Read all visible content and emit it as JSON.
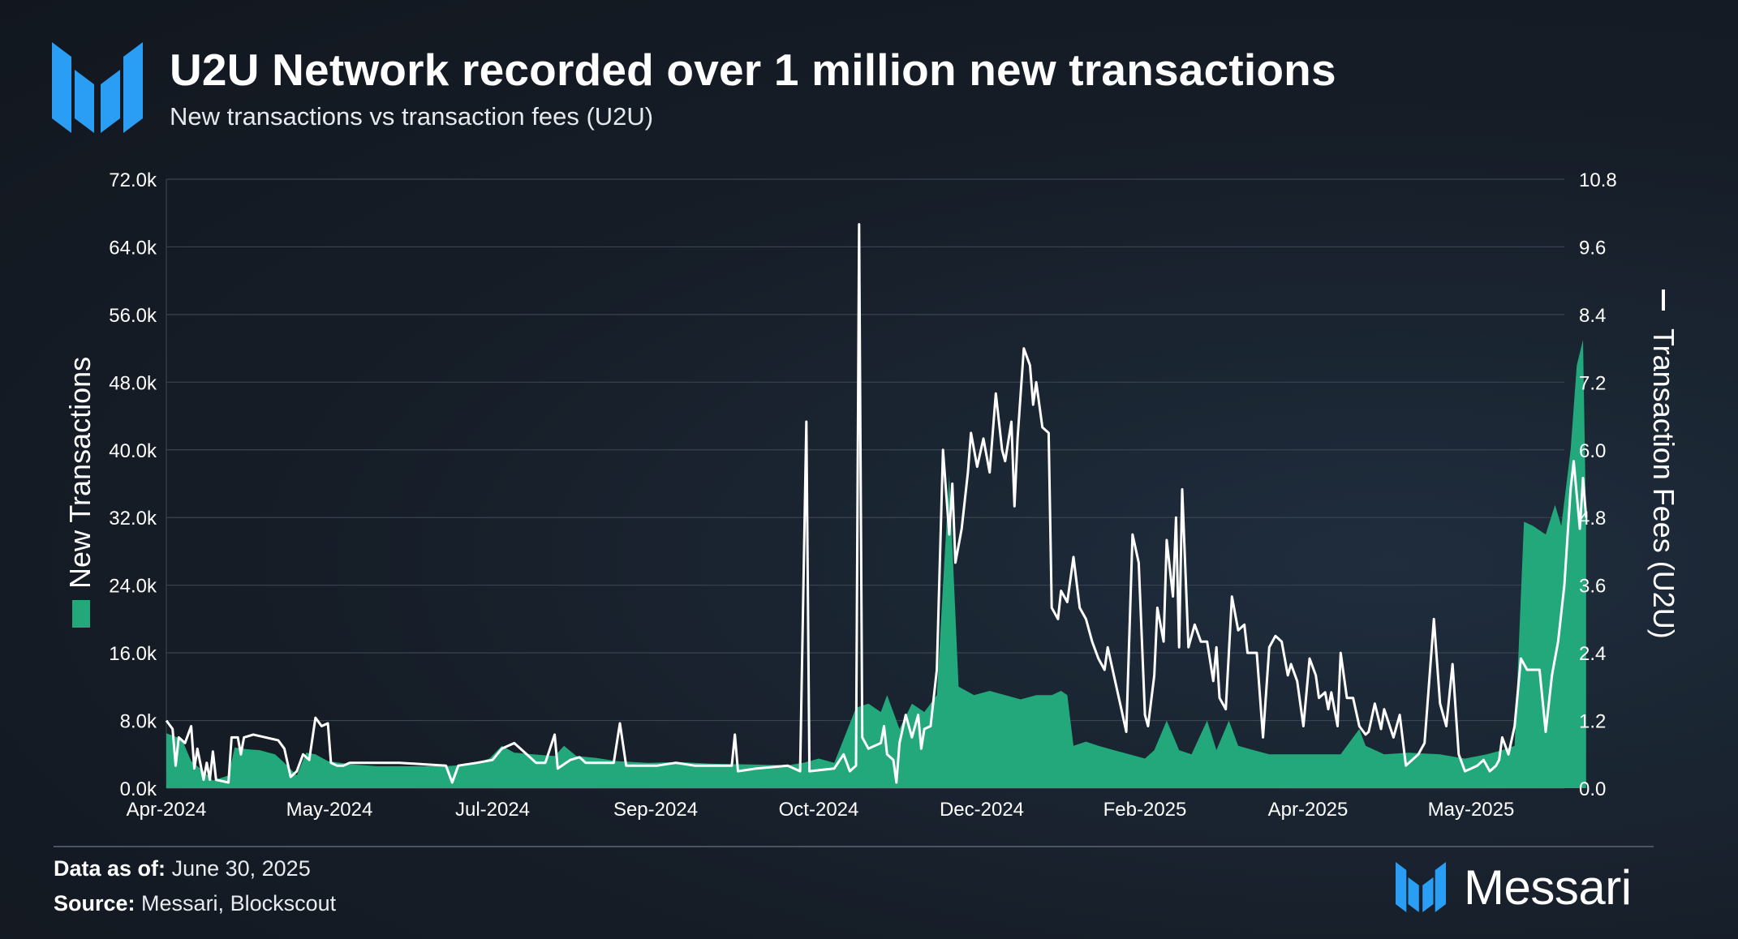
{
  "header": {
    "title": "U2U Network recorded over 1 million new transactions",
    "subtitle": "New transactions vs transaction fees (U2U)"
  },
  "footer": {
    "data_as_of_label": "Data as of:",
    "data_as_of_value": "June 30, 2025",
    "source_label": "Source:",
    "source_value": "Messari, Blockscout",
    "brand": "Messari"
  },
  "colors": {
    "area": "#22a87a",
    "line": "#ffffff",
    "grid": "#3a4350",
    "text": "#ffffff"
  },
  "chart_data": {
    "type": "area",
    "title": "U2U Network recorded over 1 million new transactions",
    "subtitle": "New transactions vs transaction fees (U2U)",
    "x_ticks": [
      "Apr-2024",
      "May-2024",
      "Jul-2024",
      "Sep-2024",
      "Oct-2024",
      "Dec-2024",
      "Feb-2025",
      "Apr-2025",
      "May-2025"
    ],
    "x_range_days": [
      0,
      450
    ],
    "y_left": {
      "label": "New Transactions",
      "range": [
        0,
        72000
      ],
      "ticks": [
        "0.0k",
        "8.0k",
        "16.0k",
        "24.0k",
        "32.0k",
        "40.0k",
        "48.0k",
        "56.0k",
        "64.0k",
        "72.0k"
      ]
    },
    "y_right": {
      "label": "Transaction Fees (U2U)",
      "range": [
        0,
        10.8
      ],
      "ticks": [
        "0.0",
        "1.2",
        "2.4",
        "3.6",
        "4.8",
        "6.0",
        "7.2",
        "8.4",
        "9.6",
        "10.8"
      ]
    },
    "series": [
      {
        "name": "New Transactions",
        "axis": "left",
        "style": "area",
        "points": [
          [
            0,
            6500
          ],
          [
            5,
            5800
          ],
          [
            8,
            3200
          ],
          [
            12,
            2000
          ],
          [
            15,
            900
          ],
          [
            20,
            1500
          ],
          [
            22,
            4800
          ],
          [
            26,
            4600
          ],
          [
            30,
            4500
          ],
          [
            35,
            4000
          ],
          [
            38,
            3000
          ],
          [
            42,
            1500
          ],
          [
            45,
            4200
          ],
          [
            48,
            4000
          ],
          [
            52,
            3200
          ],
          [
            56,
            3000
          ],
          [
            60,
            2800
          ],
          [
            68,
            2600
          ],
          [
            80,
            2600
          ],
          [
            90,
            2600
          ],
          [
            98,
            2800
          ],
          [
            104,
            3500
          ],
          [
            108,
            5000
          ],
          [
            112,
            4200
          ],
          [
            118,
            4000
          ],
          [
            125,
            3800
          ],
          [
            128,
            5000
          ],
          [
            132,
            3800
          ],
          [
            138,
            3600
          ],
          [
            145,
            3200
          ],
          [
            155,
            3000
          ],
          [
            165,
            3100
          ],
          [
            175,
            2900
          ],
          [
            188,
            2800
          ],
          [
            200,
            2700
          ],
          [
            205,
            3000
          ],
          [
            210,
            3500
          ],
          [
            215,
            3000
          ],
          [
            222,
            9500
          ],
          [
            226,
            10000
          ],
          [
            230,
            9000
          ],
          [
            232,
            11000
          ],
          [
            236,
            7000
          ],
          [
            240,
            10000
          ],
          [
            244,
            9000
          ],
          [
            248,
            11000
          ],
          [
            252,
            37000
          ],
          [
            255,
            12000
          ],
          [
            260,
            11000
          ],
          [
            265,
            11500
          ],
          [
            270,
            11000
          ],
          [
            275,
            10500
          ],
          [
            280,
            11000
          ],
          [
            285,
            11000
          ],
          [
            288,
            11500
          ],
          [
            290,
            11000
          ],
          [
            292,
            5000
          ],
          [
            296,
            5500
          ],
          [
            300,
            5000
          ],
          [
            305,
            4500
          ],
          [
            310,
            4000
          ],
          [
            315,
            3500
          ],
          [
            318,
            4500
          ],
          [
            322,
            8000
          ],
          [
            326,
            4500
          ],
          [
            330,
            4000
          ],
          [
            335,
            8000
          ],
          [
            338,
            4500
          ],
          [
            342,
            8000
          ],
          [
            345,
            5000
          ],
          [
            350,
            4500
          ],
          [
            355,
            4000
          ],
          [
            365,
            4000
          ],
          [
            378,
            4000
          ],
          [
            384,
            7000
          ],
          [
            386,
            5000
          ],
          [
            392,
            4000
          ],
          [
            400,
            4200
          ],
          [
            410,
            4000
          ],
          [
            418,
            3500
          ],
          [
            425,
            4000
          ],
          [
            430,
            4500
          ],
          [
            434,
            5000
          ],
          [
            437,
            31500
          ],
          [
            440,
            31000
          ],
          [
            444,
            30000
          ],
          [
            447,
            33500
          ],
          [
            449,
            31000
          ],
          [
            452,
            40000
          ],
          [
            454,
            50000
          ],
          [
            456,
            53000
          ],
          [
            457,
            31000
          ]
        ]
      },
      {
        "name": "Transaction Fees (U2U)",
        "axis": "right",
        "style": "line",
        "points": [
          [
            0,
            1.2
          ],
          [
            2,
            1.05
          ],
          [
            3,
            0.4
          ],
          [
            4,
            0.9
          ],
          [
            6,
            0.8
          ],
          [
            8,
            1.1
          ],
          [
            9,
            0.35
          ],
          [
            10,
            0.7
          ],
          [
            12,
            0.15
          ],
          [
            13,
            0.45
          ],
          [
            14,
            0.15
          ],
          [
            15,
            0.65
          ],
          [
            16,
            0.15
          ],
          [
            20,
            0.1
          ],
          [
            21,
            0.9
          ],
          [
            23,
            0.9
          ],
          [
            24,
            0.6
          ],
          [
            25,
            0.9
          ],
          [
            28,
            0.95
          ],
          [
            32,
            0.9
          ],
          [
            36,
            0.85
          ],
          [
            38,
            0.7
          ],
          [
            40,
            0.2
          ],
          [
            42,
            0.3
          ],
          [
            44,
            0.6
          ],
          [
            46,
            0.5
          ],
          [
            48,
            1.25
          ],
          [
            50,
            1.1
          ],
          [
            52,
            1.15
          ],
          [
            53,
            0.45
          ],
          [
            55,
            0.4
          ],
          [
            57,
            0.4
          ],
          [
            59,
            0.45
          ],
          [
            62,
            0.45
          ],
          [
            75,
            0.45
          ],
          [
            90,
            0.4
          ],
          [
            92,
            0.1
          ],
          [
            94,
            0.4
          ],
          [
            100,
            0.45
          ],
          [
            105,
            0.5
          ],
          [
            108,
            0.7
          ],
          [
            112,
            0.8
          ],
          [
            116,
            0.6
          ],
          [
            119,
            0.45
          ],
          [
            122,
            0.45
          ],
          [
            125,
            0.95
          ],
          [
            126,
            0.35
          ],
          [
            130,
            0.5
          ],
          [
            133,
            0.55
          ],
          [
            135,
            0.45
          ],
          [
            138,
            0.45
          ],
          [
            144,
            0.45
          ],
          [
            146,
            1.15
          ],
          [
            148,
            0.4
          ],
          [
            152,
            0.4
          ],
          [
            158,
            0.4
          ],
          [
            164,
            0.45
          ],
          [
            170,
            0.4
          ],
          [
            182,
            0.4
          ],
          [
            183,
            0.95
          ],
          [
            184,
            0.3
          ],
          [
            190,
            0.35
          ],
          [
            200,
            0.4
          ],
          [
            204,
            0.3
          ],
          [
            206,
            6.5
          ],
          [
            207,
            0.3
          ],
          [
            215,
            0.35
          ],
          [
            218,
            0.6
          ],
          [
            220,
            0.3
          ],
          [
            222,
            0.4
          ],
          [
            223,
            10.0
          ],
          [
            224,
            0.9
          ],
          [
            226,
            0.7
          ],
          [
            228,
            0.75
          ],
          [
            230,
            0.8
          ],
          [
            231,
            1.1
          ],
          [
            232,
            0.6
          ],
          [
            234,
            0.5
          ],
          [
            235,
            0.1
          ],
          [
            236,
            0.8
          ],
          [
            238,
            1.3
          ],
          [
            240,
            0.9
          ],
          [
            242,
            1.3
          ],
          [
            243,
            0.7
          ],
          [
            244,
            1.05
          ],
          [
            246,
            1.1
          ],
          [
            248,
            2.1
          ],
          [
            250,
            6.0
          ],
          [
            252,
            4.5
          ],
          [
            253,
            5.4
          ],
          [
            254,
            4.0
          ],
          [
            256,
            4.6
          ],
          [
            258,
            5.6
          ],
          [
            259,
            6.3
          ],
          [
            261,
            5.7
          ],
          [
            263,
            6.2
          ],
          [
            265,
            5.6
          ],
          [
            267,
            7.0
          ],
          [
            269,
            6.0
          ],
          [
            270,
            5.8
          ],
          [
            272,
            6.5
          ],
          [
            273,
            5.0
          ],
          [
            274,
            6.2
          ],
          [
            276,
            7.8
          ],
          [
            278,
            7.5
          ],
          [
            279,
            6.8
          ],
          [
            280,
            7.2
          ],
          [
            282,
            6.4
          ],
          [
            284,
            6.3
          ],
          [
            285,
            3.2
          ],
          [
            287,
            3.0
          ],
          [
            288,
            3.5
          ],
          [
            290,
            3.3
          ],
          [
            292,
            4.1
          ],
          [
            294,
            3.2
          ],
          [
            296,
            3.0
          ],
          [
            298,
            2.6
          ],
          [
            300,
            2.3
          ],
          [
            302,
            2.1
          ],
          [
            303,
            2.5
          ],
          [
            305,
            2.0
          ],
          [
            307,
            1.5
          ],
          [
            309,
            1.0
          ],
          [
            311,
            4.5
          ],
          [
            313,
            4.0
          ],
          [
            315,
            1.3
          ],
          [
            316,
            1.1
          ],
          [
            318,
            2.0
          ],
          [
            319,
            3.2
          ],
          [
            321,
            2.6
          ],
          [
            322,
            4.4
          ],
          [
            324,
            3.4
          ],
          [
            325,
            4.8
          ],
          [
            326,
            2.5
          ],
          [
            327,
            5.3
          ],
          [
            329,
            2.5
          ],
          [
            331,
            2.9
          ],
          [
            333,
            2.6
          ],
          [
            335,
            2.6
          ],
          [
            337,
            1.9
          ],
          [
            338,
            2.5
          ],
          [
            339,
            1.6
          ],
          [
            341,
            1.4
          ],
          [
            343,
            3.4
          ],
          [
            345,
            2.8
          ],
          [
            347,
            2.9
          ],
          [
            348,
            2.4
          ],
          [
            351,
            2.4
          ],
          [
            353,
            0.9
          ],
          [
            355,
            2.5
          ],
          [
            357,
            2.7
          ],
          [
            359,
            2.6
          ],
          [
            361,
            2.0
          ],
          [
            362,
            2.2
          ],
          [
            364,
            1.9
          ],
          [
            366,
            1.1
          ],
          [
            368,
            2.3
          ],
          [
            370,
            2.0
          ],
          [
            371,
            1.6
          ],
          [
            373,
            1.7
          ],
          [
            374,
            1.4
          ],
          [
            375,
            1.7
          ],
          [
            377,
            1.1
          ],
          [
            378,
            2.4
          ],
          [
            380,
            1.6
          ],
          [
            382,
            1.6
          ],
          [
            384,
            1.1
          ],
          [
            386,
            0.95
          ],
          [
            387,
            1.0
          ],
          [
            389,
            1.5
          ],
          [
            391,
            1.05
          ],
          [
            392,
            1.4
          ],
          [
            395,
            0.9
          ],
          [
            397,
            1.3
          ],
          [
            399,
            0.4
          ],
          [
            401,
            0.5
          ],
          [
            403,
            0.6
          ],
          [
            405,
            0.8
          ],
          [
            408,
            3.0
          ],
          [
            410,
            1.5
          ],
          [
            412,
            1.1
          ],
          [
            414,
            2.2
          ],
          [
            416,
            0.6
          ],
          [
            418,
            0.3
          ],
          [
            420,
            0.35
          ],
          [
            422,
            0.4
          ],
          [
            424,
            0.5
          ],
          [
            426,
            0.3
          ],
          [
            428,
            0.4
          ],
          [
            429,
            0.5
          ],
          [
            430,
            0.9
          ],
          [
            432,
            0.6
          ],
          [
            434,
            1.1
          ],
          [
            436,
            2.3
          ],
          [
            438,
            2.1
          ],
          [
            440,
            2.1
          ],
          [
            442,
            2.1
          ],
          [
            444,
            1.0
          ],
          [
            446,
            2.0
          ],
          [
            448,
            2.6
          ],
          [
            450,
            3.6
          ],
          [
            452,
            5.3
          ],
          [
            453,
            5.8
          ],
          [
            455,
            4.6
          ],
          [
            456,
            5.5
          ],
          [
            457,
            4.8
          ]
        ]
      }
    ]
  }
}
